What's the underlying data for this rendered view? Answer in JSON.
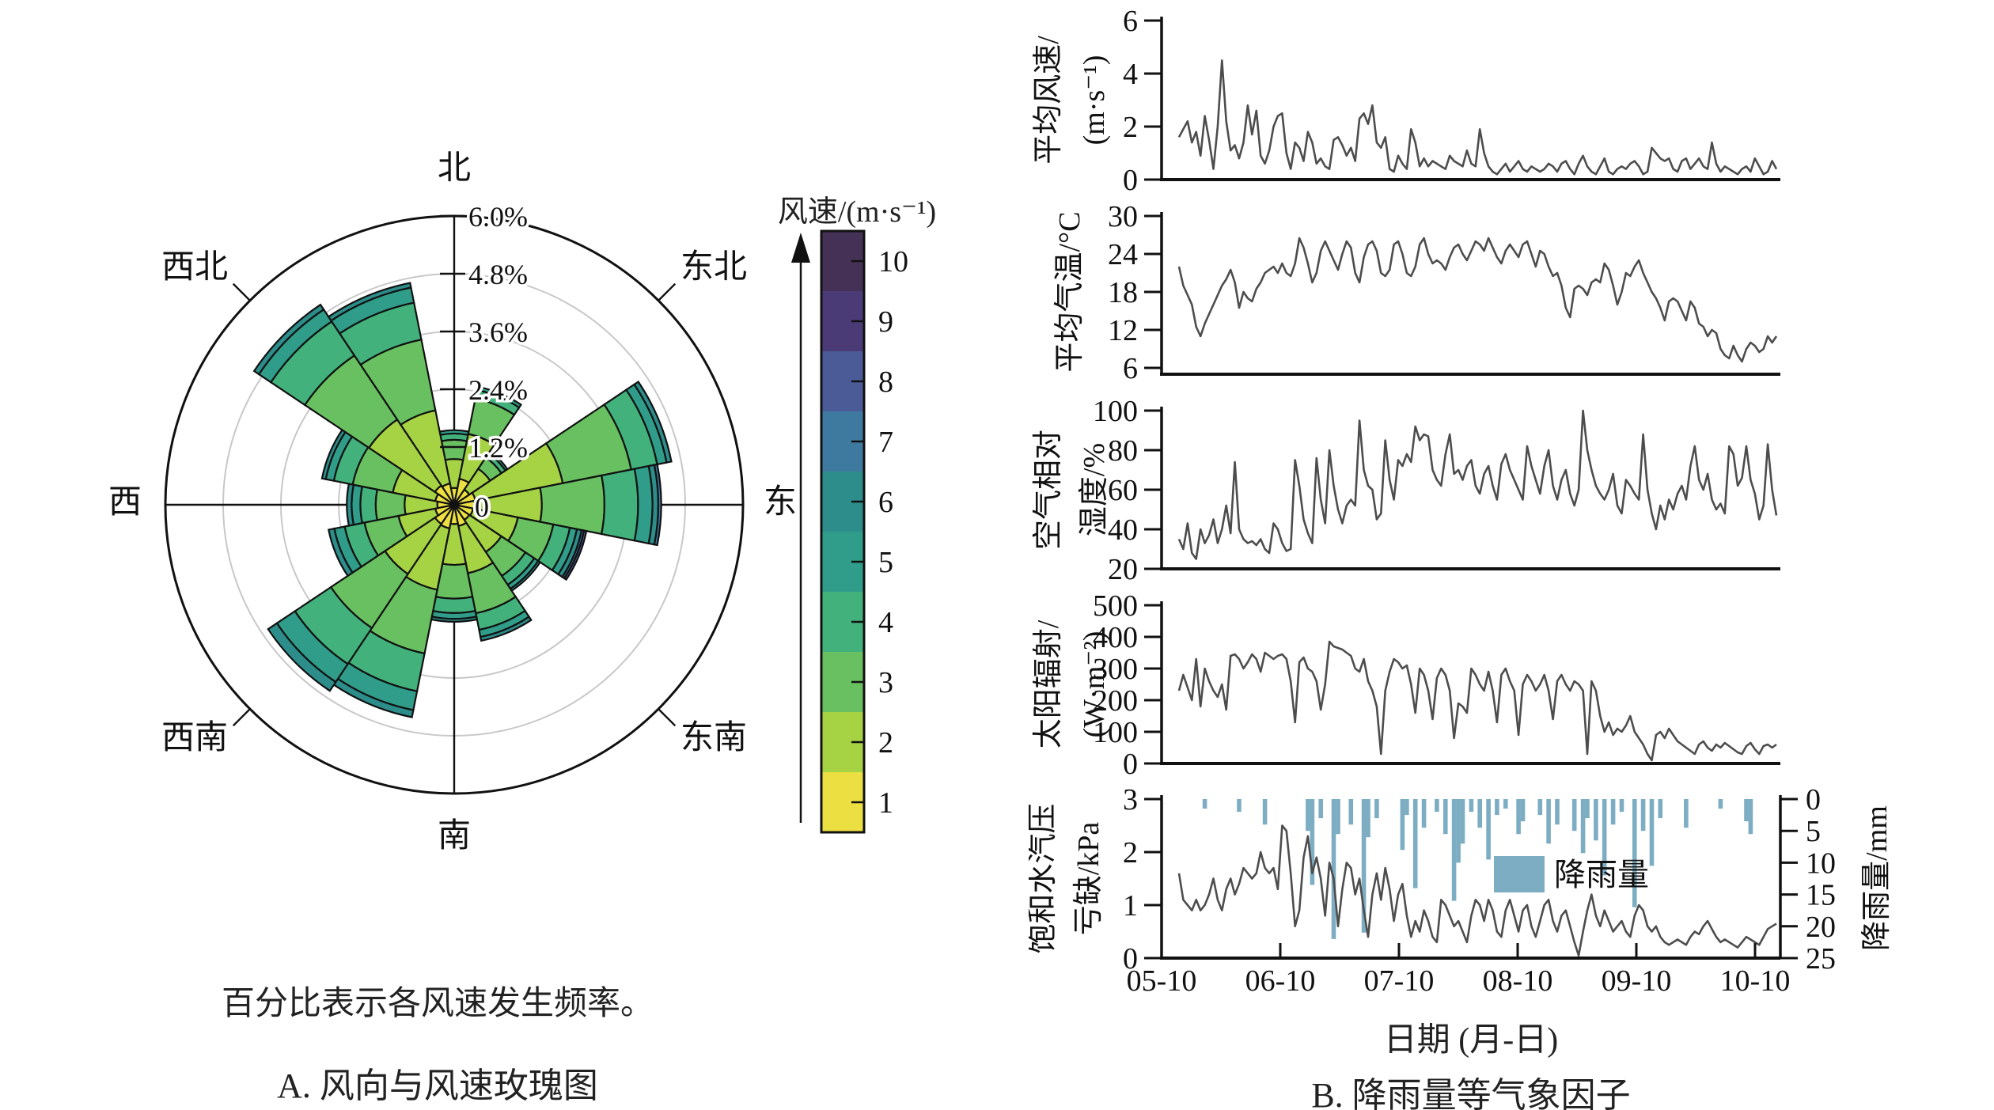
{
  "panel_a": {
    "caption_note": "百分比表示各风速发生频率。",
    "caption": "A. 风向与风速玫瑰图",
    "direction_labels": [
      "北",
      "东北",
      "东",
      "东南",
      "南",
      "西南",
      "西",
      "西北"
    ],
    "radial_tick_labels": [
      "1.2%",
      "2.4%",
      "3.6%",
      "4.8%",
      "6.0%"
    ],
    "radial_zero_label": "0",
    "colorbar": {
      "title": "风速/(m·s⁻¹)",
      "tick_labels": [
        "1",
        "2",
        "3",
        "4",
        "5",
        "6",
        "7",
        "8",
        "9",
        "10"
      ],
      "colors": [
        "#ecdf41",
        "#a6d344",
        "#69c061",
        "#42b17c",
        "#2f9d89",
        "#2c8d8a",
        "#3e7aa0",
        "#4a5b98",
        "#4a3b77",
        "#443155"
      ]
    }
  },
  "panel_b": {
    "xlabel": "日期 (月-日)",
    "caption": "B. 降雨量等气象因子",
    "legend_label": "降雨量",
    "line_color": "#4d4d4d",
    "rain_color": "#7dadc2",
    "xtick_labels": [
      "05-10",
      "06-10",
      "07-10",
      "08-10",
      "09-10",
      "10-10"
    ]
  },
  "chart_data": [
    {
      "id": "wind_rose",
      "type": "windrose-stacked-polar-bar",
      "title": "A. 风向与风速玫瑰图",
      "note": "百分比表示各风速发生频率。",
      "units": "%",
      "r_ticks": [
        0,
        1.2,
        2.4,
        3.6,
        4.8,
        6.0
      ],
      "speed_bin_labels": [
        1,
        2,
        3,
        4,
        5,
        6,
        7,
        8,
        9,
        10
      ],
      "direction_order_deg": "sectors centered on compass dirs, 22.5 deg wide, clockwise from N",
      "sectors": [
        {
          "dir": "N",
          "center_deg": 0,
          "segments": [
            0.35,
            0.6,
            0.4,
            0.13,
            0.07
          ]
        },
        {
          "dir": "NNE",
          "center_deg": 22.5,
          "segments": [
            0.55,
            0.95,
            0.75,
            0.18,
            0.07
          ]
        },
        {
          "dir": "NE",
          "center_deg": 45,
          "segments": [
            0.38,
            0.52,
            0.28,
            0.1,
            0.05
          ]
        },
        {
          "dir": "ENE",
          "center_deg": 67.5,
          "segments": [
            0.45,
            1.85,
            1.45,
            0.55,
            0.2,
            0.1
          ]
        },
        {
          "dir": "E",
          "center_deg": 90,
          "segments": [
            0.42,
            1.4,
            1.3,
            0.7,
            0.3,
            0.12,
            0.06
          ]
        },
        {
          "dir": "ESE",
          "center_deg": 112.5,
          "segments": [
            0.4,
            0.95,
            0.75,
            0.35,
            0.15,
            0.1,
            0.05,
            0.05
          ]
        },
        {
          "dir": "SE",
          "center_deg": 135,
          "segments": [
            0.38,
            0.8,
            0.6,
            0.22,
            0.1,
            0.05
          ]
        },
        {
          "dir": "SSE",
          "center_deg": 157.5,
          "segments": [
            0.45,
            1.0,
            0.85,
            0.35,
            0.15,
            0.08
          ]
        },
        {
          "dir": "S",
          "center_deg": 180,
          "segments": [
            0.4,
            0.85,
            0.7,
            0.3,
            0.12,
            0.06
          ]
        },
        {
          "dir": "SSW",
          "center_deg": 202.5,
          "segments": [
            0.5,
            1.3,
            1.35,
            0.8,
            0.4,
            0.15
          ]
        },
        {
          "dir": "SW",
          "center_deg": 225,
          "segments": [
            0.48,
            1.25,
            1.35,
            0.9,
            0.45,
            0.22
          ]
        },
        {
          "dir": "WSW",
          "center_deg": 247.5,
          "segments": [
            0.4,
            0.78,
            0.72,
            0.42,
            0.22,
            0.12
          ]
        },
        {
          "dir": "W",
          "center_deg": 270,
          "segments": [
            0.35,
            0.68,
            0.6,
            0.32,
            0.18,
            0.1
          ]
        },
        {
          "dir": "WNW",
          "center_deg": 292.5,
          "segments": [
            0.4,
            0.9,
            0.85,
            0.4,
            0.17,
            0.08
          ]
        },
        {
          "dir": "NW",
          "center_deg": 315,
          "segments": [
            0.48,
            1.65,
            1.6,
            0.85,
            0.3,
            0.12
          ]
        },
        {
          "dir": "NNW",
          "center_deg": 337.5,
          "segments": [
            0.45,
            1.55,
            1.5,
            0.78,
            0.32,
            0.1
          ]
        }
      ]
    },
    {
      "id": "wind_speed",
      "type": "line",
      "ylabel_lines": [
        "平均风速/",
        "(m·s⁻¹)"
      ],
      "ylim": [
        0,
        6
      ],
      "yticks": [
        6,
        4,
        2,
        0
      ],
      "values": [
        1.6,
        1.9,
        2.2,
        1.4,
        1.8,
        0.9,
        2.4,
        1.5,
        0.4,
        2.0,
        4.5,
        2.2,
        1.1,
        1.3,
        0.8,
        1.4,
        2.8,
        1.7,
        2.6,
        0.9,
        0.6,
        1.1,
        2.0,
        2.4,
        2.5,
        1.0,
        0.4,
        1.4,
        1.2,
        0.7,
        1.8,
        1.4,
        0.6,
        0.8,
        0.5,
        0.4,
        1.5,
        1.6,
        1.3,
        0.9,
        1.2,
        0.7,
        2.3,
        2.5,
        2.1,
        2.8,
        1.4,
        1.2,
        1.6,
        0.4,
        0.3,
        0.9,
        0.6,
        0.4,
        1.9,
        1.4,
        0.5,
        0.8,
        0.5,
        0.7,
        0.6,
        0.5,
        0.4,
        0.9,
        0.7,
        0.6,
        0.5,
        1.1,
        0.6,
        0.5,
        1.9,
        1.0,
        0.5,
        0.3,
        0.2,
        0.4,
        0.6,
        0.3,
        0.5,
        0.7,
        0.4,
        0.3,
        0.5,
        0.4,
        0.3,
        0.4,
        0.6,
        0.5,
        0.3,
        0.6,
        0.7,
        0.4,
        0.2,
        0.6,
        0.9,
        0.5,
        0.3,
        0.2,
        0.5,
        0.8,
        0.3,
        0.2,
        0.4,
        0.5,
        0.4,
        0.6,
        0.7,
        0.5,
        0.2,
        0.3,
        1.2,
        1.0,
        0.8,
        0.7,
        0.8,
        0.4,
        0.3,
        0.7,
        0.8,
        0.4,
        0.6,
        0.8,
        0.5,
        0.4,
        1.4,
        0.6,
        0.3,
        0.5,
        0.4,
        0.3,
        0.2,
        0.4,
        0.5,
        0.3,
        0.8,
        0.5,
        0.2,
        0.3,
        0.7,
        0.4
      ]
    },
    {
      "id": "air_temp",
      "type": "line",
      "ylabel_lines": [
        "平均气温/°C"
      ],
      "ylim": [
        5,
        30.5
      ],
      "yticks": [
        30,
        24,
        18,
        12,
        6
      ],
      "values": [
        22,
        19,
        17.5,
        16,
        12.5,
        11,
        13,
        14.5,
        16,
        17.5,
        19,
        20,
        21.5,
        19.5,
        15.5,
        18,
        17,
        16.5,
        18.5,
        19.5,
        21,
        21.5,
        22,
        21,
        22.5,
        21,
        20.5,
        22.5,
        26.5,
        25,
        22.5,
        19.5,
        21,
        24.5,
        26,
        24.5,
        23,
        21.5,
        24,
        26,
        25,
        21,
        19.5,
        23.5,
        25.5,
        26,
        24.5,
        21,
        20.5,
        21.5,
        25.5,
        26,
        24,
        21,
        20.5,
        22,
        25.5,
        26.5,
        24,
        22.5,
        23,
        22.5,
        21.5,
        23.5,
        25,
        25.5,
        24,
        23,
        24.5,
        26,
        25.5,
        24.5,
        26.5,
        25,
        23.5,
        22.5,
        24.5,
        25.5,
        24.5,
        23.5,
        25.5,
        26,
        24,
        22,
        24.5,
        24,
        22,
        20.5,
        21,
        19,
        15.5,
        14,
        18.5,
        19,
        18.5,
        17.5,
        19.5,
        20,
        19.5,
        22.5,
        21.5,
        19,
        16,
        18,
        21,
        20.5,
        22,
        23,
        21,
        19.5,
        18,
        17,
        15.5,
        13.5,
        16.5,
        17,
        16.5,
        15,
        13.5,
        16.5,
        15.5,
        13,
        12.5,
        11,
        12,
        11.5,
        9,
        8,
        7.5,
        9.5,
        8,
        7,
        9,
        10,
        9.5,
        8.5,
        9,
        11,
        10,
        11
      ]
    },
    {
      "id": "rel_humidity",
      "type": "line",
      "ylabel_lines": [
        "空气相对",
        "湿度/%"
      ],
      "ylim": [
        20,
        100
      ],
      "yticks": [
        100,
        80,
        60,
        40,
        20
      ],
      "values": [
        35,
        30,
        43,
        28,
        25,
        40,
        33,
        37,
        45,
        33,
        40,
        52,
        38,
        74,
        40,
        35,
        33,
        34,
        32,
        35,
        30,
        28,
        43,
        40,
        33,
        29,
        30,
        75,
        62,
        45,
        38,
        33,
        76,
        55,
        43,
        80,
        62,
        50,
        43,
        52,
        55,
        52,
        95,
        70,
        62,
        60,
        45,
        48,
        85,
        65,
        55,
        75,
        72,
        78,
        74,
        92,
        85,
        88,
        87,
        70,
        65,
        62,
        78,
        88,
        68,
        70,
        65,
        72,
        75,
        62,
        58,
        68,
        72,
        62,
        55,
        73,
        78,
        70,
        65,
        60,
        55,
        82,
        72,
        65,
        58,
        72,
        80,
        62,
        55,
        65,
        70,
        58,
        52,
        60,
        100,
        80,
        70,
        62,
        58,
        55,
        60,
        68,
        52,
        48,
        65,
        62,
        58,
        55,
        88,
        60,
        48,
        40,
        52,
        45,
        55,
        50,
        58,
        62,
        55,
        72,
        82,
        65,
        60,
        68,
        55,
        50,
        53,
        48,
        82,
        78,
        62,
        66,
        82,
        65,
        58,
        45,
        52,
        83,
        60,
        47
      ]
    },
    {
      "id": "solar_radiation",
      "type": "line",
      "ylabel_lines": [
        "太阳辐射/",
        "(W·m⁻²)"
      ],
      "ylim": [
        0,
        500
      ],
      "yticks": [
        500,
        400,
        300,
        200,
        100,
        0
      ],
      "values": [
        230,
        280,
        240,
        200,
        330,
        180,
        300,
        260,
        230,
        210,
        250,
        170,
        340,
        345,
        330,
        300,
        320,
        345,
        330,
        290,
        350,
        340,
        330,
        340,
        345,
        330,
        260,
        130,
        320,
        335,
        300,
        290,
        260,
        170,
        250,
        385,
        370,
        365,
        360,
        350,
        340,
        300,
        290,
        330,
        260,
        230,
        180,
        30,
        230,
        290,
        330,
        320,
        300,
        310,
        250,
        160,
        300,
        280,
        230,
        140,
        270,
        300,
        280,
        230,
        80,
        190,
        180,
        160,
        300,
        280,
        250,
        230,
        290,
        230,
        130,
        280,
        300,
        260,
        230,
        90,
        250,
        280,
        260,
        230,
        250,
        280,
        230,
        140,
        260,
        280,
        250,
        230,
        260,
        250,
        230,
        30,
        260,
        230,
        150,
        100,
        130,
        90,
        110,
        100,
        120,
        150,
        100,
        80,
        60,
        30,
        10,
        90,
        100,
        80,
        110,
        90,
        70,
        60,
        50,
        40,
        30,
        60,
        70,
        50,
        40,
        60,
        50,
        65,
        55,
        45,
        35,
        30,
        55,
        65,
        45,
        30,
        55,
        60,
        50,
        60
      ]
    },
    {
      "id": "vpd",
      "type": "line",
      "ylabel_lines": [
        "饱和水汽压",
        "亏缺/kPa"
      ],
      "ylim": [
        0,
        3
      ],
      "yticks": [
        3,
        2,
        1,
        0
      ],
      "values": [
        1.6,
        1.1,
        1.0,
        0.9,
        1.1,
        0.9,
        1.0,
        1.2,
        1.5,
        1.1,
        0.9,
        1.3,
        1.5,
        1.2,
        1.4,
        1.7,
        1.6,
        1.5,
        1.6,
        2.0,
        1.7,
        1.6,
        1.7,
        1.3,
        2.5,
        2.4,
        1.6,
        0.6,
        0.9,
        1.9,
        2.3,
        1.6,
        1.9,
        1.5,
        0.8,
        1.8,
        1.5,
        0.6,
        1.3,
        1.8,
        1.7,
        1.2,
        1.5,
        0.9,
        0.4,
        1.2,
        1.6,
        1.1,
        1.7,
        1.3,
        0.7,
        1.2,
        1.4,
        0.8,
        0.4,
        0.7,
        0.5,
        0.9,
        0.7,
        0.4,
        0.3,
        1.1,
        1.0,
        0.8,
        0.6,
        0.7,
        0.5,
        0.3,
        0.8,
        1.1,
        1.0,
        0.7,
        1.1,
        0.9,
        0.5,
        0.4,
        0.9,
        1.1,
        0.8,
        0.5,
        0.9,
        1.0,
        0.6,
        0.4,
        0.7,
        1.0,
        1.1,
        0.7,
        0.5,
        0.8,
        0.9,
        0.6,
        0.3,
        0.05,
        0.5,
        0.9,
        1.2,
        0.8,
        0.6,
        0.9,
        0.7,
        0.5,
        0.6,
        0.7,
        0.5,
        0.4,
        0.8,
        1.0,
        0.9,
        0.6,
        0.5,
        0.6,
        0.4,
        0.3,
        0.25,
        0.3,
        0.35,
        0.3,
        0.25,
        0.4,
        0.5,
        0.45,
        0.6,
        0.7,
        0.55,
        0.4,
        0.3,
        0.35,
        0.3,
        0.25,
        0.2,
        0.3,
        0.4,
        0.35,
        0.3,
        0.25,
        0.4,
        0.55,
        0.6,
        0.65
      ]
    },
    {
      "id": "rainfall",
      "type": "bar",
      "ylabel": "降雨量/mm",
      "axis": "right-inverted",
      "ylim": [
        0,
        25
      ],
      "yticks": [
        0,
        5,
        10,
        15,
        20,
        25
      ],
      "values": [
        0,
        0,
        0,
        0,
        0,
        0,
        1.5,
        0,
        0,
        0,
        0,
        0,
        0,
        0,
        2,
        0,
        0,
        0,
        0,
        0,
        4,
        0,
        0,
        0,
        0,
        0,
        0,
        0,
        0,
        0,
        5,
        13.5,
        0,
        3,
        0,
        0,
        22,
        5.5,
        0,
        0,
        4,
        0,
        0,
        21,
        6,
        0,
        3,
        0,
        0,
        0,
        0,
        0,
        8,
        2.5,
        0,
        14,
        0,
        4.5,
        0,
        0,
        2,
        0,
        5.5,
        0,
        16,
        10,
        7,
        0,
        2,
        0,
        4.5,
        0,
        9.5,
        0,
        2.5,
        0,
        1.5,
        0,
        0,
        5.5,
        3.5,
        0,
        0,
        0,
        2.5,
        0,
        7,
        0,
        4,
        0,
        0,
        0,
        5,
        0,
        8.5,
        3,
        0,
        6.5,
        0,
        12,
        0,
        4,
        0,
        2,
        0,
        0,
        17,
        0,
        5,
        0,
        10.5,
        0,
        3,
        0,
        0,
        0,
        0,
        0,
        4.5,
        0,
        0,
        0,
        0,
        0,
        0,
        0,
        1.5,
        0,
        0,
        0,
        0,
        0,
        3.5,
        5.5,
        0,
        0,
        0,
        0,
        0,
        0
      ]
    },
    {
      "id": "x_axis_shared",
      "xlabel": "日期 (月-日)",
      "xticks": [
        "05-10",
        "06-10",
        "07-10",
        "08-10",
        "09-10",
        "10-10"
      ]
    }
  ]
}
